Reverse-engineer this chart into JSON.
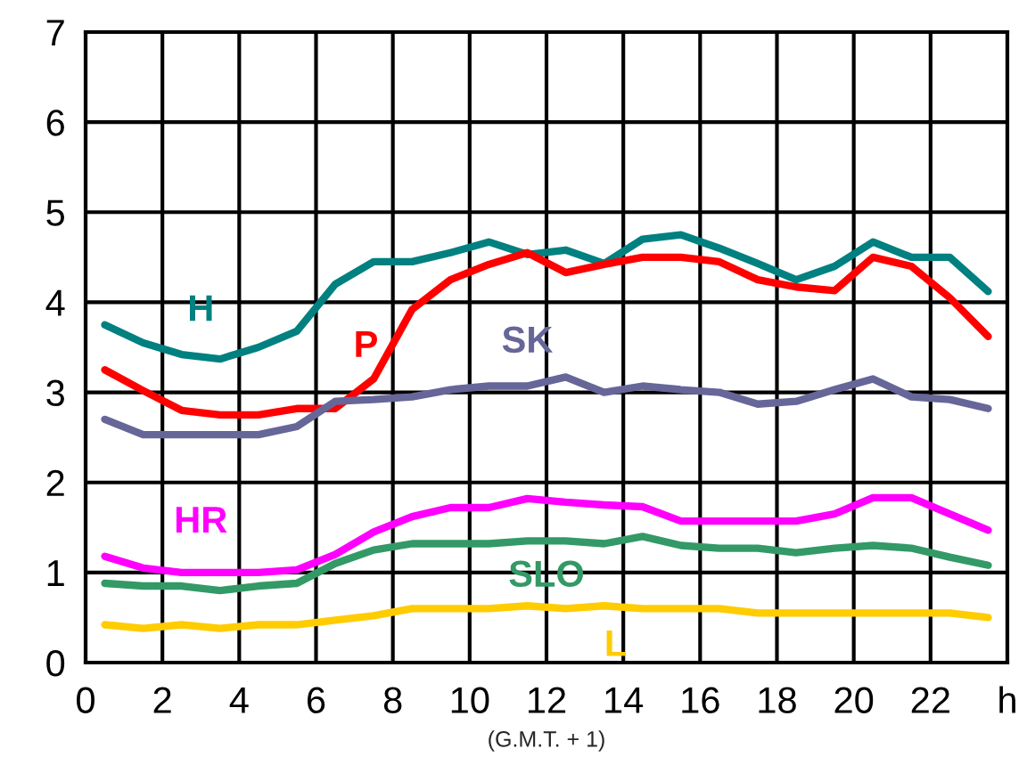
{
  "chart_data": {
    "type": "line",
    "xlabel": "(G.M.T. + 1)",
    "x": [
      0.5,
      1.5,
      2.5,
      3.5,
      4.5,
      5.5,
      6.5,
      7.5,
      8.5,
      9.5,
      10.5,
      11.5,
      12.5,
      13.5,
      14.5,
      15.5,
      16.5,
      17.5,
      18.5,
      19.5,
      20.5,
      21.5,
      22.5,
      23.5
    ],
    "series": [
      {
        "name": "H",
        "color": "#008080",
        "values": [
          3.75,
          3.55,
          3.42,
          3.37,
          3.5,
          3.68,
          4.2,
          4.45,
          4.45,
          4.55,
          4.67,
          4.53,
          4.58,
          4.43,
          4.7,
          4.75,
          4.6,
          4.43,
          4.25,
          4.4,
          4.67,
          4.5,
          4.5,
          4.12
        ]
      },
      {
        "name": "P",
        "color": "#ff0000",
        "values": [
          3.25,
          3.02,
          2.8,
          2.75,
          2.75,
          2.82,
          2.82,
          3.15,
          3.92,
          4.25,
          4.42,
          4.55,
          4.33,
          4.42,
          4.5,
          4.5,
          4.45,
          4.25,
          4.17,
          4.13,
          4.5,
          4.4,
          4.05,
          3.62
        ]
      },
      {
        "name": "SK",
        "color": "#666699",
        "values": [
          2.7,
          2.53,
          2.53,
          2.53,
          2.53,
          2.62,
          2.9,
          2.92,
          2.95,
          3.03,
          3.07,
          3.07,
          3.17,
          3.0,
          3.07,
          3.03,
          3.0,
          2.87,
          2.9,
          3.03,
          3.15,
          2.95,
          2.92,
          2.82
        ]
      },
      {
        "name": "HR",
        "color": "#ff00ff",
        "values": [
          1.18,
          1.05,
          1.0,
          1.0,
          1.0,
          1.03,
          1.2,
          1.45,
          1.62,
          1.72,
          1.72,
          1.82,
          1.78,
          1.75,
          1.73,
          1.57,
          1.57,
          1.57,
          1.57,
          1.65,
          1.83,
          1.83,
          1.65,
          1.47
        ]
      },
      {
        "name": "SLO",
        "color": "#339966",
        "values": [
          0.88,
          0.85,
          0.85,
          0.8,
          0.85,
          0.88,
          1.1,
          1.25,
          1.32,
          1.32,
          1.32,
          1.35,
          1.35,
          1.32,
          1.4,
          1.3,
          1.27,
          1.27,
          1.22,
          1.27,
          1.3,
          1.27,
          1.17,
          1.08
        ]
      },
      {
        "name": "L",
        "color": "#ffcc00",
        "values": [
          0.42,
          0.38,
          0.42,
          0.38,
          0.42,
          0.42,
          0.47,
          0.52,
          0.6,
          0.6,
          0.6,
          0.63,
          0.6,
          0.63,
          0.6,
          0.6,
          0.6,
          0.55,
          0.55,
          0.55,
          0.55,
          0.55,
          0.55,
          0.5
        ]
      }
    ],
    "xlim": [
      0,
      24
    ],
    "xticks": [
      0,
      2,
      4,
      6,
      8,
      10,
      12,
      14,
      16,
      18,
      20,
      22,
      {
        "value": 24,
        "label": "h"
      }
    ],
    "ylim": [
      0,
      7
    ],
    "yticks": [
      0,
      1,
      2,
      3,
      4,
      5,
      6,
      7
    ],
    "grid": true,
    "legend": false,
    "marker": "none",
    "line_style": "solid"
  }
}
